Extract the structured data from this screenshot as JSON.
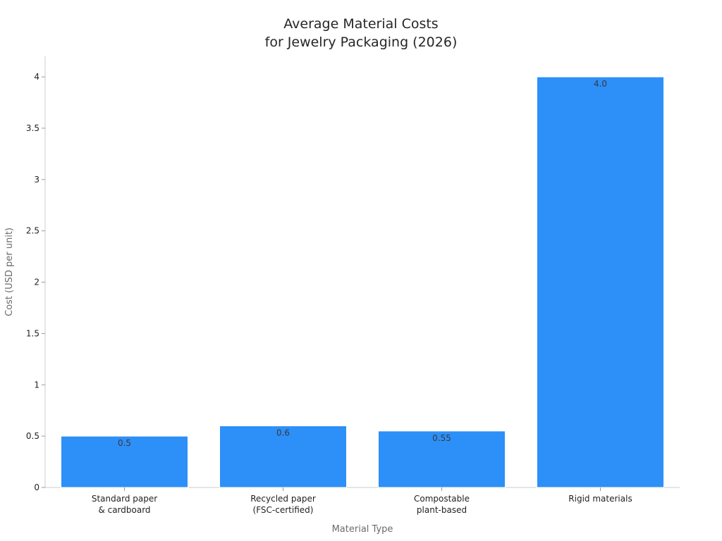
{
  "chart_data": {
    "type": "bar",
    "title": [
      "Average Material Costs",
      "for Jewelry Packaging (2026)"
    ],
    "xlabel": "Material Type",
    "ylabel": "Cost (USD per unit)",
    "categories": [
      [
        "Standard paper",
        "& cardboard"
      ],
      [
        "Recycled paper",
        "(FSC-certified)"
      ],
      [
        "Compostable",
        "plant-based"
      ],
      [
        "Rigid materials"
      ]
    ],
    "values": [
      0.5,
      0.6,
      0.55,
      4.0
    ],
    "data_labels": [
      "0.5",
      "0.6",
      "0.55",
      "4.0"
    ],
    "yticks": [
      0,
      0.5,
      1,
      1.5,
      2,
      2.5,
      3,
      3.5,
      4
    ],
    "ytick_labels": [
      "0",
      "0.5",
      "1",
      "1.5",
      "2",
      "2.5",
      "3",
      "3.5",
      "4"
    ],
    "ylim": [
      0,
      4.2
    ],
    "grid": false,
    "legend": "none",
    "colors": {
      "bar": "#2d8ff8",
      "bar_edge": "#ffffff"
    }
  }
}
